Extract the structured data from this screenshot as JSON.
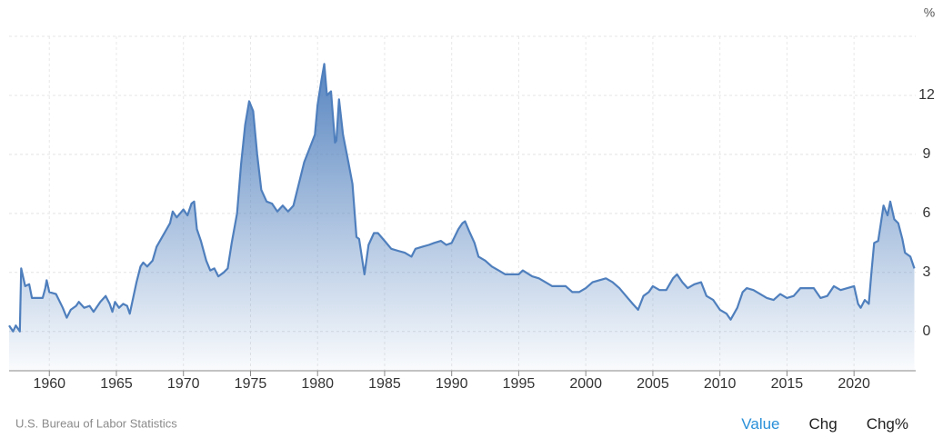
{
  "chart_data": {
    "type": "area",
    "y_unit": "%",
    "source": "U.S. Bureau of Labor Statistics",
    "tabs": [
      "Value",
      "Chg",
      "Chg%"
    ],
    "color": "#4f7fbd",
    "grid": true,
    "xlim": [
      1957,
      2024.6
    ],
    "xticks": [
      1960,
      1965,
      1970,
      1975,
      1980,
      1985,
      1990,
      1995,
      2000,
      2005,
      2010,
      2015,
      2020
    ],
    "ylim": [
      -2,
      15
    ],
    "yticks": [
      0,
      3,
      6,
      9,
      12
    ],
    "x": [
      1957.0,
      1957.3,
      1957.5,
      1957.8,
      1957.9,
      1958.2,
      1958.5,
      1958.7,
      1959.5,
      1959.7,
      1959.8,
      1960.0,
      1960.5,
      1961.0,
      1961.3,
      1961.6,
      1962.0,
      1962.2,
      1962.6,
      1963.0,
      1963.3,
      1963.8,
      1964.2,
      1964.5,
      1964.7,
      1964.9,
      1965.2,
      1965.5,
      1965.8,
      1966.0,
      1966.5,
      1966.8,
      1967.0,
      1967.3,
      1967.7,
      1968.0,
      1968.5,
      1969.0,
      1969.2,
      1969.5,
      1970.0,
      1970.3,
      1970.6,
      1970.8,
      1971.0,
      1971.3,
      1971.7,
      1972.0,
      1972.3,
      1972.6,
      1973.0,
      1973.3,
      1973.6,
      1974.0,
      1974.3,
      1974.6,
      1974.9,
      1975.2,
      1975.5,
      1975.8,
      1976.2,
      1976.6,
      1977.0,
      1977.4,
      1977.8,
      1978.2,
      1978.6,
      1979.0,
      1979.4,
      1979.8,
      1980.0,
      1980.3,
      1980.5,
      1980.7,
      1981.0,
      1981.3,
      1981.4,
      1981.6,
      1981.9,
      1982.3,
      1982.6,
      1982.9,
      1983.1,
      1983.5,
      1983.8,
      1984.2,
      1984.5,
      1985.0,
      1985.5,
      1986.0,
      1986.5,
      1987.0,
      1987.3,
      1987.8,
      1988.3,
      1988.7,
      1989.2,
      1989.6,
      1990.0,
      1990.5,
      1990.8,
      1991.0,
      1991.3,
      1991.7,
      1992.0,
      1992.5,
      1993.0,
      1993.5,
      1994.0,
      1994.5,
      1995.0,
      1995.3,
      1996.0,
      1996.5,
      1997.0,
      1997.5,
      1998.0,
      1998.5,
      1999.0,
      1999.5,
      2000.0,
      2000.5,
      2001.0,
      2001.5,
      2002.0,
      2002.5,
      2003.0,
      2003.5,
      2003.9,
      2004.3,
      2004.7,
      2005.0,
      2005.5,
      2006.0,
      2006.5,
      2006.8,
      2007.2,
      2007.6,
      2008.1,
      2008.6,
      2009.0,
      2009.5,
      2010.0,
      2010.5,
      2010.8,
      2011.3,
      2011.7,
      2012.0,
      2012.5,
      2013.0,
      2013.5,
      2014.0,
      2014.5,
      2015.0,
      2015.5,
      2016.0,
      2016.5,
      2017.0,
      2017.5,
      2018.0,
      2018.5,
      2019.0,
      2019.5,
      2020.0,
      2020.3,
      2020.5,
      2020.8,
      2021.1,
      2021.3,
      2021.5,
      2021.8,
      2022.0,
      2022.2,
      2022.5,
      2022.7,
      2023.0,
      2023.3,
      2023.6,
      2023.8,
      2024.2,
      2024.5
    ],
    "values": [
      0.3,
      0.0,
      0.3,
      0.0,
      3.2,
      2.3,
      2.4,
      1.7,
      1.7,
      2.2,
      2.6,
      2.0,
      1.9,
      1.2,
      0.7,
      1.1,
      1.3,
      1.5,
      1.2,
      1.3,
      1.0,
      1.5,
      1.8,
      1.4,
      1.0,
      1.5,
      1.2,
      1.4,
      1.3,
      0.9,
      2.5,
      3.3,
      3.5,
      3.3,
      3.6,
      4.3,
      4.9,
      5.5,
      6.1,
      5.8,
      6.2,
      5.9,
      6.5,
      6.6,
      5.2,
      4.6,
      3.6,
      3.1,
      3.2,
      2.8,
      3.0,
      3.2,
      4.5,
      6.0,
      8.5,
      10.5,
      11.7,
      11.2,
      9.0,
      7.2,
      6.6,
      6.5,
      6.1,
      6.4,
      6.1,
      6.4,
      7.5,
      8.6,
      9.3,
      10.0,
      11.5,
      12.8,
      13.6,
      12.0,
      12.2,
      9.6,
      9.7,
      11.8,
      10.0,
      8.6,
      7.5,
      4.8,
      4.7,
      2.9,
      4.4,
      5.0,
      5.0,
      4.6,
      4.2,
      4.1,
      4.0,
      3.8,
      4.2,
      4.3,
      4.4,
      4.5,
      4.6,
      4.4,
      4.5,
      5.2,
      5.5,
      5.6,
      5.1,
      4.5,
      3.8,
      3.6,
      3.3,
      3.1,
      2.9,
      2.9,
      2.9,
      3.1,
      2.8,
      2.7,
      2.5,
      2.3,
      2.3,
      2.3,
      2.0,
      2.0,
      2.2,
      2.5,
      2.6,
      2.7,
      2.5,
      2.2,
      1.8,
      1.4,
      1.1,
      1.8,
      2.0,
      2.3,
      2.1,
      2.1,
      2.7,
      2.9,
      2.5,
      2.2,
      2.4,
      2.5,
      1.8,
      1.6,
      1.1,
      0.9,
      0.6,
      1.2,
      2.0,
      2.2,
      2.1,
      1.9,
      1.7,
      1.6,
      1.9,
      1.7,
      1.8,
      2.2,
      2.2,
      2.2,
      1.7,
      1.8,
      2.3,
      2.1,
      2.2,
      2.3,
      1.4,
      1.2,
      1.6,
      1.4,
      3.0,
      4.5,
      4.6,
      5.5,
      6.4,
      5.9,
      6.6,
      5.7,
      5.5,
      4.7,
      4.0,
      3.8,
      3.2
    ]
  }
}
